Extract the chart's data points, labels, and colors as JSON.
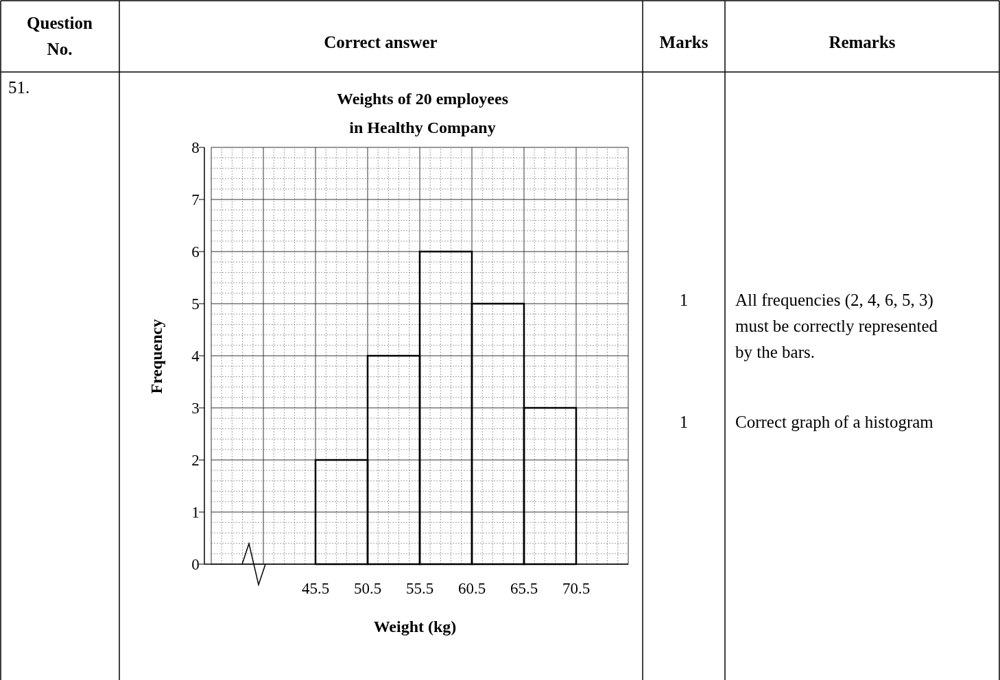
{
  "chart_data": {
    "type": "histogram",
    "title": "Weights of 20 employees in Healthy Company",
    "xlabel": "Weight (kg)",
    "ylabel": "Frequency",
    "bins": [
      45.5,
      50.5,
      55.5,
      60.5,
      65.5,
      70.5
    ],
    "values": [
      2,
      4,
      6,
      5,
      3
    ],
    "color": "#000000",
    "xlim": [
      35.5,
      75.5
    ],
    "xticks": [
      45.5,
      50.5,
      55.5,
      60.5,
      65.5,
      70.5
    ],
    "ylim": [
      0,
      8
    ],
    "yticks": [
      0,
      1,
      2,
      3,
      4,
      5,
      6,
      7,
      8
    ],
    "grid": true,
    "annotations": [
      "Question No.",
      "Correct answer",
      "Marks",
      "Remarks",
      "51.",
      "1",
      "All frequencies (2, 4, 6, 5, 3) must be correctly represented by the bars.",
      "1",
      "Correct graph of a histogram"
    ]
  }
}
